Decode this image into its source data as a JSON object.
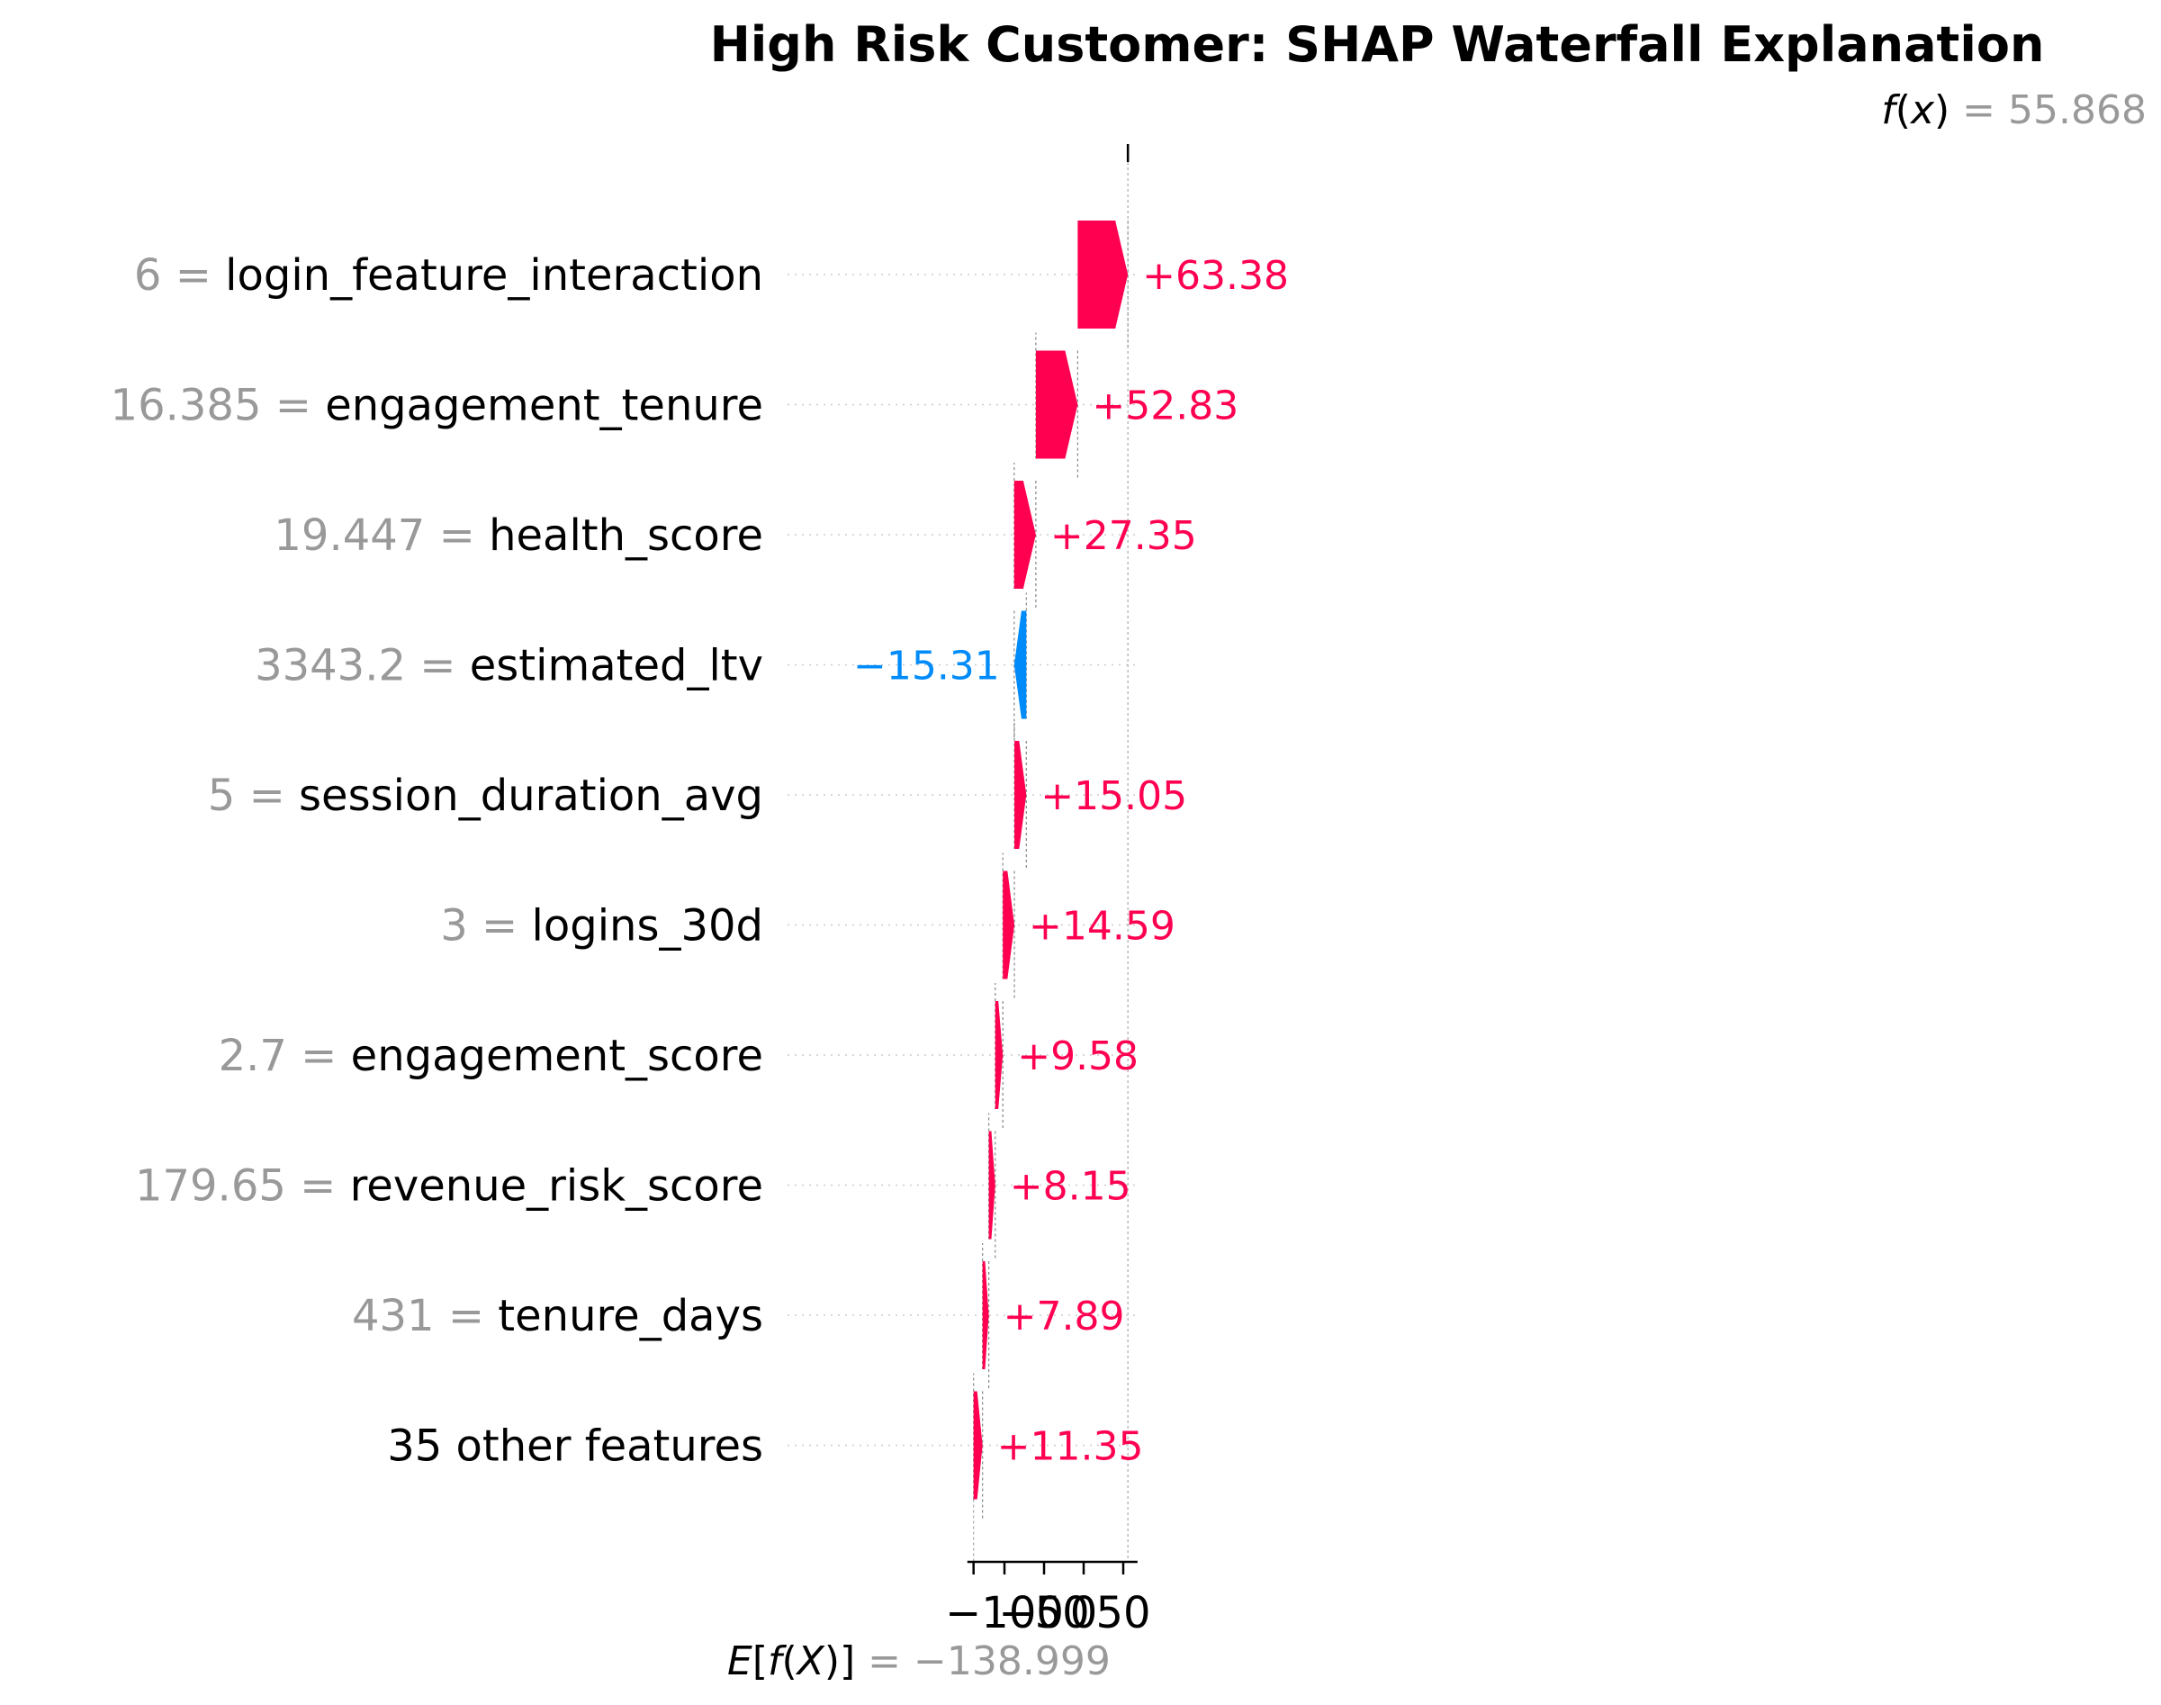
{
  "chart_data": {
    "type": "waterfall",
    "title": "High Risk Customer: SHAP Waterfall Explanation",
    "fx": {
      "label_fn": "f",
      "label_arg": "x",
      "value_text": "55.868",
      "value": 55.868
    },
    "base": {
      "label_fn": "E",
      "label_arg": "X",
      "value_text": "−138.999",
      "value": -138.999
    },
    "equals": "=",
    "features": [
      {
        "value": "6",
        "name": "login_feature_interaction",
        "shap": 63.38,
        "label": "+63.38"
      },
      {
        "value": "16.385",
        "name": "engagement_tenure",
        "shap": 52.83,
        "label": "+52.83"
      },
      {
        "value": "19.447",
        "name": "health_score",
        "shap": 27.35,
        "label": "+27.35"
      },
      {
        "value": "3343.2",
        "name": "estimated_ltv",
        "shap": -15.31,
        "label": "−15.31"
      },
      {
        "value": "5",
        "name": "session_duration_avg",
        "shap": 15.05,
        "label": "+15.05"
      },
      {
        "value": "3",
        "name": "logins_30d",
        "shap": 14.59,
        "label": "+14.59"
      },
      {
        "value": "2.7",
        "name": "engagement_score",
        "shap": 9.58,
        "label": "+9.58"
      },
      {
        "value": "179.65",
        "name": "revenue_risk_score",
        "shap": 8.15,
        "label": "+8.15"
      },
      {
        "value": "431",
        "name": "tenure_days",
        "shap": 7.89,
        "label": "+7.89"
      },
      {
        "value": "",
        "name": "35 other features",
        "shap": 11.35,
        "label": "+11.35"
      }
    ],
    "xticks": [
      {
        "value": -100,
        "label": "−100"
      },
      {
        "value": -50,
        "label": "−50"
      },
      {
        "value": 0,
        "label": "0"
      },
      {
        "value": 50,
        "label": "50"
      }
    ],
    "xlim": [
      -140,
      68
    ],
    "colors": {
      "positive": "#ff0051",
      "negative": "#008bfb",
      "muted": "#999999",
      "text": "#000000"
    }
  }
}
